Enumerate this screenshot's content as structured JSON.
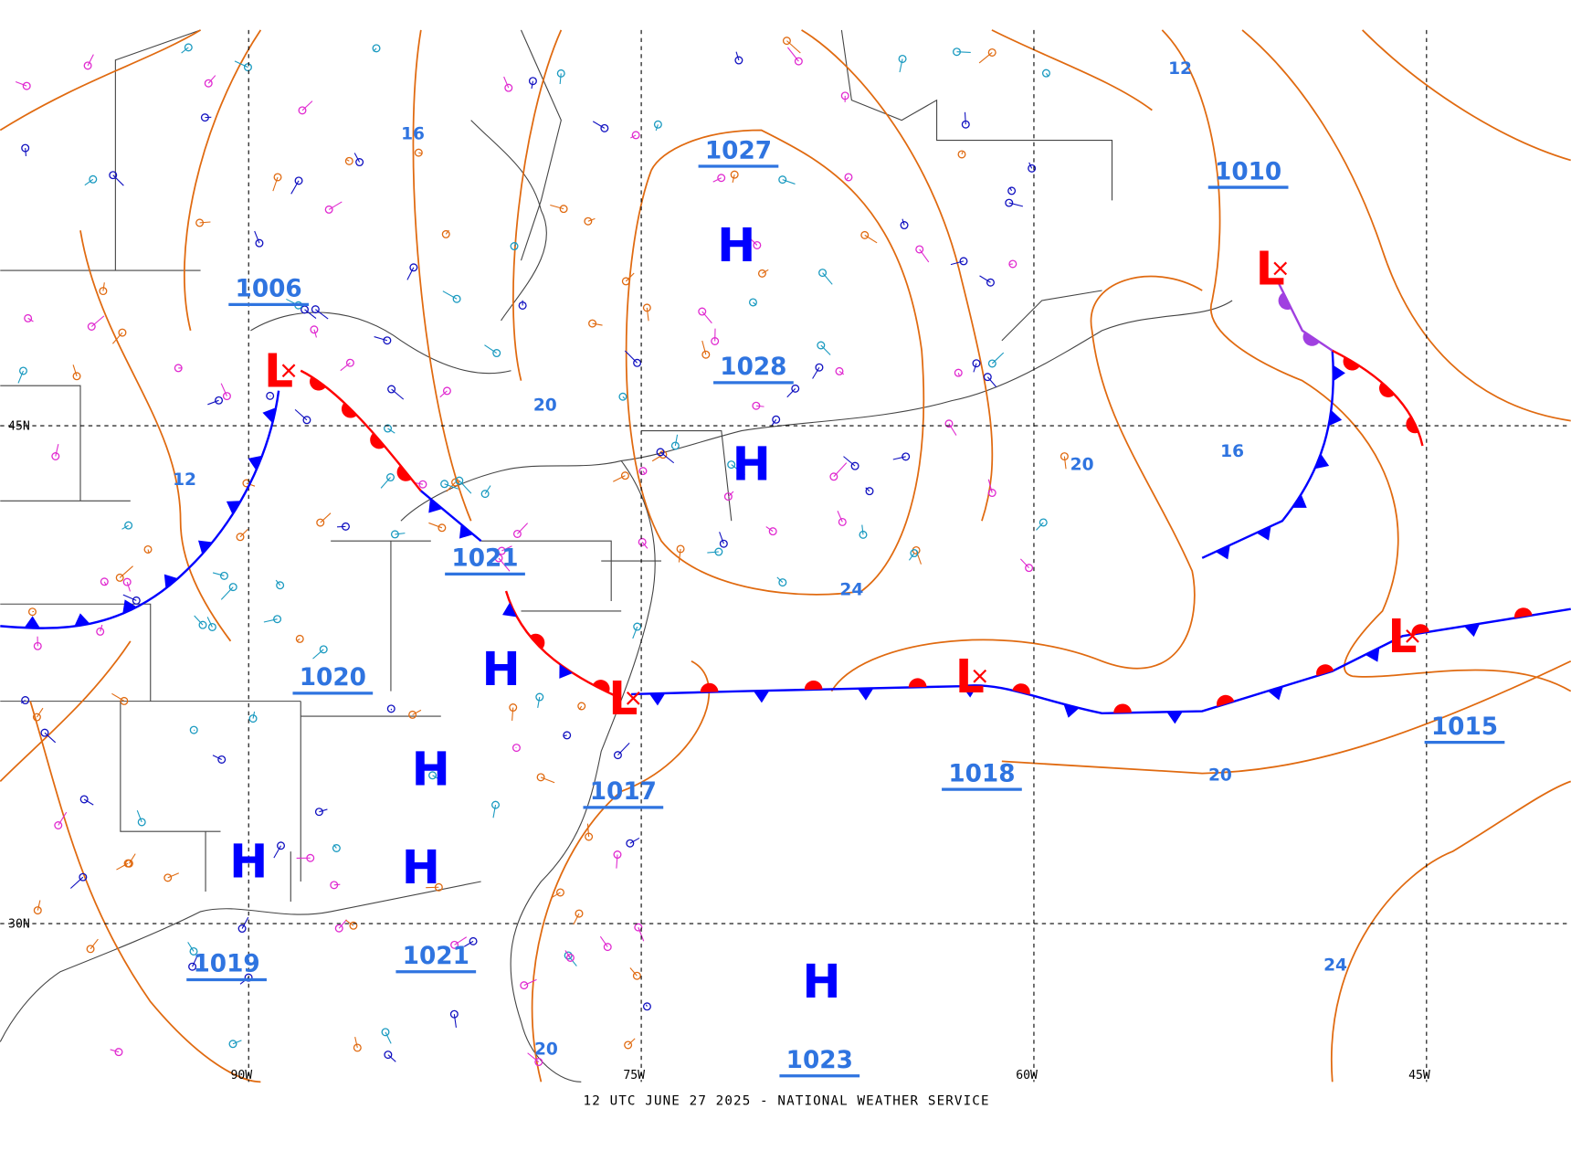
{
  "map": {
    "footer": "12 UTC JUNE 27 2025 - NATIONAL WEATHER SERVICE",
    "lat_labels": [
      "45N",
      "30N"
    ],
    "lon_labels": [
      "90W",
      "75W",
      "60W",
      "45W"
    ],
    "centers": [
      "H",
      "H",
      "H",
      "H",
      "H",
      "H",
      "H",
      "L",
      "L",
      "L",
      "L",
      "L"
    ],
    "pressure_labels": [
      1027,
      1028,
      1006,
      1010,
      1021,
      1020,
      1017,
      1018,
      1015,
      1019,
      1021,
      1023
    ],
    "isobar_labels": [
      16,
      12,
      20,
      12,
      24,
      20,
      16,
      20,
      24,
      20
    ]
  }
}
